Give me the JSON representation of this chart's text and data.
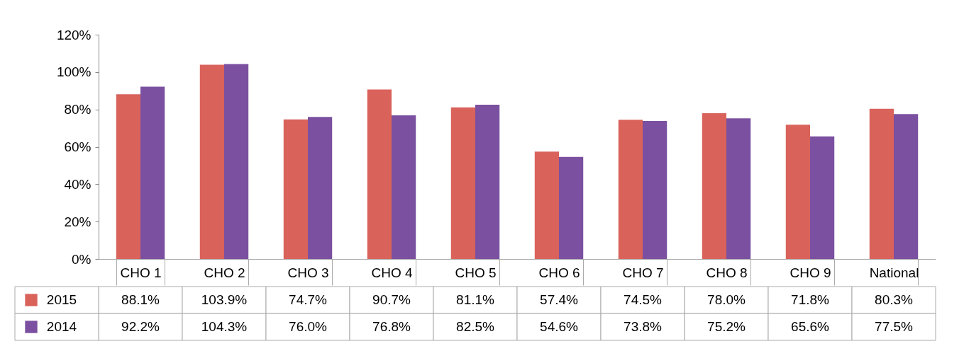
{
  "chart_data": {
    "type": "bar",
    "categories": [
      "CHO 1",
      "CHO 2",
      "CHO 3",
      "CHO 4",
      "CHO 5",
      "CHO 6",
      "CHO 7",
      "CHO 8",
      "CHO 9",
      "National"
    ],
    "series": [
      {
        "name": "2015",
        "color": "#d9625b",
        "values": [
          88.1,
          103.9,
          74.7,
          90.7,
          81.1,
          57.4,
          74.5,
          78.0,
          71.8,
          80.3
        ],
        "value_labels": [
          "88.1%",
          "103.9%",
          "74.7%",
          "90.7%",
          "81.1%",
          "57.4%",
          "74.5%",
          "78.0%",
          "71.8%",
          "80.3%"
        ]
      },
      {
        "name": "2014",
        "color": "#7b50a0",
        "values": [
          92.2,
          104.3,
          76.0,
          76.8,
          82.5,
          54.6,
          73.8,
          75.2,
          65.6,
          77.5
        ],
        "value_labels": [
          "92.2%",
          "104.3%",
          "76.0%",
          "76.8%",
          "82.5%",
          "54.6%",
          "73.8%",
          "75.2%",
          "65.6%",
          "77.5%"
        ]
      }
    ],
    "ylim": [
      0,
      120
    ],
    "yticks": [
      {
        "value": 0,
        "label": "0%"
      },
      {
        "value": 20,
        "label": "20%"
      },
      {
        "value": 40,
        "label": "40%"
      },
      {
        "value": 60,
        "label": "60%"
      },
      {
        "value": 80,
        "label": "80%"
      },
      {
        "value": 100,
        "label": "100%"
      },
      {
        "value": 120,
        "label": "120%"
      }
    ],
    "grid": false,
    "legend": "bottom left"
  }
}
